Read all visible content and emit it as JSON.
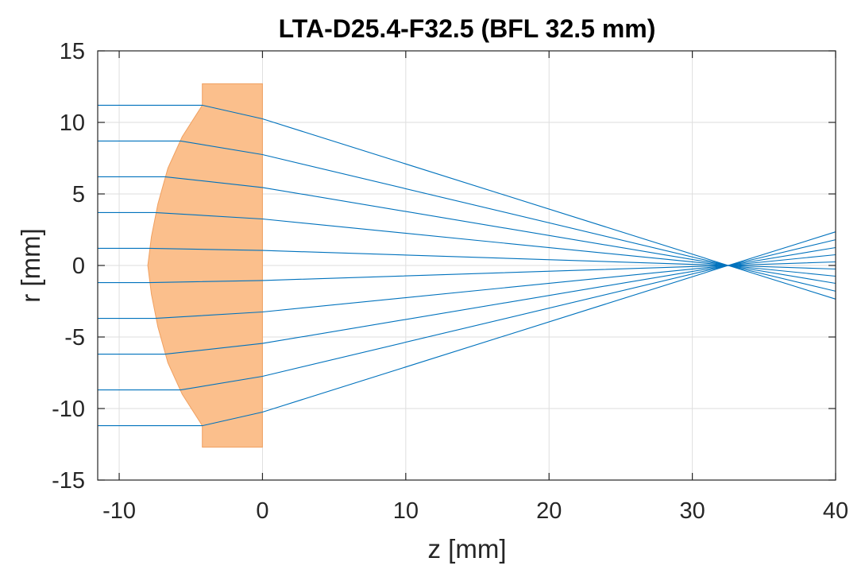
{
  "chart_data": {
    "type": "line",
    "title": "LTA-D25.4-F32.5 (BFL 32.5 mm)",
    "xlabel": "z [mm]",
    "ylabel": "r [mm]",
    "xlim": [
      -11.5,
      40
    ],
    "ylim": [
      -15,
      15
    ],
    "xticks": [
      -10,
      0,
      10,
      20,
      30,
      40
    ],
    "xtick_labels": [
      "-10",
      "0",
      "10",
      "20",
      "30",
      "40"
    ],
    "yticks": [
      15,
      10,
      5,
      0,
      -5,
      -10,
      -15
    ],
    "ytick_labels": [
      "15",
      "10",
      "5",
      "0",
      "-5",
      "-10",
      "-15"
    ],
    "grid": true,
    "lens": {
      "name": "plano-convex lens",
      "fill": "#fbbf8c",
      "edge": "#f0a060",
      "outline": [
        [
          -4.2,
          12.7
        ],
        [
          0,
          12.7
        ],
        [
          0,
          -12.7
        ],
        [
          -4.2,
          -12.7
        ],
        [
          -4.2,
          -11.2
        ],
        [
          -5.6,
          -9.0
        ],
        [
          -6.6,
          -6.8
        ],
        [
          -7.3,
          -4.3
        ],
        [
          -7.75,
          -2.0
        ],
        [
          -8.0,
          0
        ],
        [
          -7.75,
          2.0
        ],
        [
          -7.3,
          4.3
        ],
        [
          -6.6,
          6.8
        ],
        [
          -5.6,
          9.0
        ],
        [
          -4.2,
          11.2
        ]
      ]
    },
    "ray_color": "#0072bd",
    "series": [
      {
        "name": "ray-1",
        "points": [
          [
            -11.5,
            11.2
          ],
          [
            -4.2,
            11.2
          ],
          [
            0,
            10.25
          ],
          [
            32.5,
            0
          ],
          [
            40,
            -2.35
          ]
        ]
      },
      {
        "name": "ray-2",
        "points": [
          [
            -11.5,
            8.7
          ],
          [
            -5.7,
            8.7
          ],
          [
            0,
            7.75
          ],
          [
            32.5,
            0
          ],
          [
            40,
            -1.8
          ]
        ]
      },
      {
        "name": "ray-3",
        "points": [
          [
            -11.5,
            6.2
          ],
          [
            -6.8,
            6.2
          ],
          [
            0,
            5.45
          ],
          [
            32.5,
            0
          ],
          [
            40,
            -1.25
          ]
        ]
      },
      {
        "name": "ray-4",
        "points": [
          [
            -11.5,
            3.7
          ],
          [
            -7.5,
            3.7
          ],
          [
            0,
            3.25
          ],
          [
            32.5,
            0
          ],
          [
            40,
            -0.75
          ]
        ]
      },
      {
        "name": "ray-5",
        "points": [
          [
            -11.5,
            1.2
          ],
          [
            -7.9,
            1.2
          ],
          [
            0,
            1.05
          ],
          [
            32.5,
            0
          ],
          [
            40,
            -0.25
          ]
        ]
      },
      {
        "name": "ray-6",
        "points": [
          [
            -11.5,
            -1.2
          ],
          [
            -7.9,
            -1.2
          ],
          [
            0,
            -1.05
          ],
          [
            32.5,
            0
          ],
          [
            40,
            0.25
          ]
        ]
      },
      {
        "name": "ray-7",
        "points": [
          [
            -11.5,
            -3.7
          ],
          [
            -7.5,
            -3.7
          ],
          [
            0,
            -3.25
          ],
          [
            32.5,
            0
          ],
          [
            40,
            0.75
          ]
        ]
      },
      {
        "name": "ray-8",
        "points": [
          [
            -11.5,
            -6.2
          ],
          [
            -6.8,
            -6.2
          ],
          [
            0,
            -5.45
          ],
          [
            32.5,
            0
          ],
          [
            40,
            1.25
          ]
        ]
      },
      {
        "name": "ray-9",
        "points": [
          [
            -11.5,
            -8.7
          ],
          [
            -5.7,
            -8.7
          ],
          [
            0,
            -7.75
          ],
          [
            32.5,
            0
          ],
          [
            40,
            1.8
          ]
        ]
      },
      {
        "name": "ray-10",
        "points": [
          [
            -11.5,
            -11.2
          ],
          [
            -4.2,
            -11.2
          ],
          [
            0,
            -10.25
          ],
          [
            32.5,
            0
          ],
          [
            40,
            2.35
          ]
        ]
      }
    ]
  }
}
